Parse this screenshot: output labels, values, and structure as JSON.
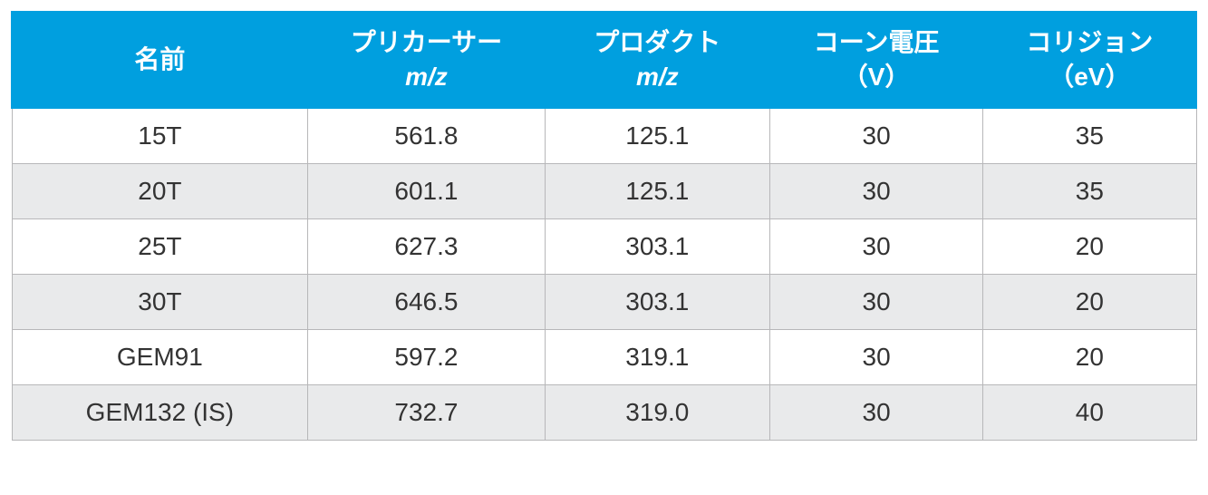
{
  "table": {
    "columns": [
      {
        "line1": "名前",
        "line2": ""
      },
      {
        "line1": "プリカーサー",
        "line2": "m/z",
        "italic2": true
      },
      {
        "line1": "プロダクト",
        "line2": "m/z",
        "italic2": true
      },
      {
        "line1": "コーン電圧",
        "line2": "（V）"
      },
      {
        "line1": "コリジョン",
        "line2": "（eV）"
      }
    ],
    "rows": [
      [
        "15T",
        "561.8",
        "125.1",
        "30",
        "35"
      ],
      [
        "20T",
        "601.1",
        "125.1",
        "30",
        "35"
      ],
      [
        "25T",
        "627.3",
        "303.1",
        "30",
        "20"
      ],
      [
        "30T",
        "646.5",
        "303.1",
        "30",
        "20"
      ],
      [
        "GEM91",
        "597.2",
        "319.1",
        "30",
        "20"
      ],
      [
        "GEM132 (IS)",
        "732.7",
        "319.0",
        "30",
        "40"
      ]
    ],
    "header_bg": "#009fdf",
    "header_text_color": "#ffffff",
    "row_odd_bg": "#ffffff",
    "row_even_bg": "#e9eaeb",
    "border_color": "#b7b7b9",
    "cell_text_color": "#333333",
    "header_fontsize": 28,
    "cell_fontsize": 28,
    "col_widths_pct": [
      25,
      20,
      19,
      18,
      18
    ]
  }
}
